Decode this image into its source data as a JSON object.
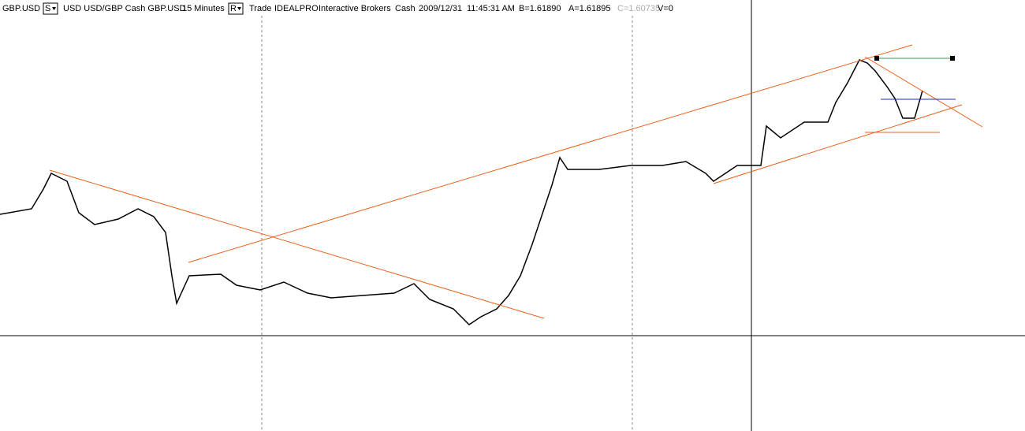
{
  "header": {
    "symbol": "GBP.USD",
    "study_menu": "S",
    "description": "USD USD/GBP Cash GBP.USD",
    "interval": "15 Minutes",
    "range_menu": "R",
    "mode": "Trade",
    "exchange": "IDEALPRO",
    "broker": "Interactive Brokers",
    "asset": "Cash",
    "date": "2009/12/31",
    "time": "11:45:31 AM",
    "bid": "B=1.61890",
    "ask": "A=1.61895",
    "close": "C=1.60735",
    "volume": "V=0"
  }
}
